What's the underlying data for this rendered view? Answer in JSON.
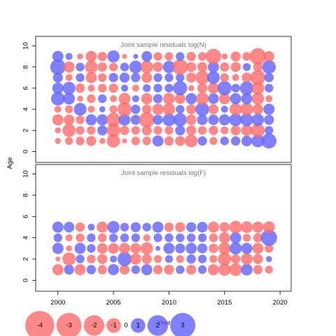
{
  "chart_data": {
    "type": "scatter",
    "subtype": "bubble",
    "xlabel": "Year",
    "ylabel": "Age",
    "x_ticks": [
      2000,
      2005,
      2010,
      2015,
      2020
    ],
    "xlim": [
      1998,
      2021
    ],
    "colors": {
      "positive": "#6262ff",
      "negative": "#ff6c6c",
      "alpha": 0.8
    },
    "legend": {
      "position": "bottom-left",
      "values": [
        -4,
        -3,
        -2,
        -1,
        0,
        1,
        2,
        3
      ],
      "labels": [
        "-4",
        "-3",
        "-2",
        "-1",
        "0",
        "1",
        "2",
        "3"
      ]
    },
    "panels": [
      {
        "title": "Joint sample residuals log(N)",
        "ylim": [
          -0.5,
          10.5
        ],
        "y_ticks": [
          0,
          2,
          4,
          6,
          8,
          10
        ],
        "years": [
          2000,
          2001,
          2002,
          2003,
          2004,
          2005,
          2006,
          2007,
          2008,
          2009,
          2010,
          2011,
          2012,
          2013,
          2014,
          2015,
          2016,
          2017,
          2018,
          2019
        ],
        "ages": [
          1,
          2,
          3,
          4,
          5,
          6,
          7,
          8,
          9
        ],
        "residuals": [
          [
            -0.3,
            -0.5,
            -0.6,
            -0.8,
            -0.3,
            -1.4,
            -0.2,
            -0.6,
            -0.6,
            1.0,
            -0.7,
            -0.8,
            -1.3,
            0.7,
            -0.5,
            0.6,
            0.7,
            0.9,
            1.3,
            1.8
          ],
          [
            -0.3,
            -1.4,
            -0.6,
            -0.6,
            0.8,
            -1.5,
            -0.7,
            -0.6,
            -0.8,
            -0.6,
            -0.6,
            0.8,
            -0.8,
            -0.6,
            -0.7,
            -0.5,
            -0.8,
            -1.0,
            -1.5,
            0.6
          ],
          [
            -1.0,
            -0.9,
            -0.6,
            1.0,
            1.0,
            -1.6,
            1.1,
            0.8,
            -1.9,
            0.8,
            1.3,
            1.4,
            -0.9,
            0.9,
            0.9,
            1.0,
            1.3,
            1.3,
            1.2,
            0.8
          ],
          [
            -0.4,
            -0.5,
            1.3,
            -0.4,
            0.3,
            -0.5,
            -1.6,
            0.7,
            -0.7,
            -1.0,
            -1.2,
            0.6,
            -0.8,
            1.5,
            -0.8,
            0.4,
            -1.2,
            -1.3,
            -0.9,
            1.0
          ],
          [
            1.5,
            1.1,
            -0.3,
            -0.6,
            0.6,
            -0.4,
            -1.1,
            0.4,
            -1.0,
            0.7,
            -1.1,
            -0.9,
            1.0,
            -1.3,
            0.9,
            -1.0,
            1.0,
            1.0,
            -1.2,
            -0.4
          ],
          [
            1.0,
            1.3,
            -0.7,
            -0.4,
            -0.6,
            -0.7,
            0.4,
            -0.4,
            0.5,
            0.6,
            0.6,
            1.6,
            -0.3,
            -0.8,
            -1.0,
            1.6,
            0.6,
            1.5,
            -1.3,
            0.6
          ],
          [
            0.8,
            -0.4,
            0.6,
            -1.0,
            -0.6,
            0.7,
            0.8,
            0.7,
            -0.9,
            0.6,
            0.6,
            0.6,
            -0.8,
            -1.5,
            1.3,
            -0.6,
            -0.4,
            -0.8,
            -1.8,
            0.7
          ],
          [
            1.9,
            -1.0,
            0.6,
            -1.3,
            -0.7,
            -0.6,
            0.6,
            1.3,
            -1.3,
            -0.8,
            1.2,
            -1.9,
            -0.8,
            -0.8,
            1.0,
            -0.7,
            -0.8,
            0.5,
            -0.7,
            1.5
          ],
          [
            1.0,
            0.4,
            -0.3,
            -1.0,
            -0.7,
            1.2,
            -0.2,
            0.2,
            0.9,
            -0.6,
            -0.6,
            0.6,
            -0.7,
            -0.6,
            -1.9,
            -0.3,
            -0.8,
            -0.6,
            -2.2,
            -0.9
          ]
        ]
      },
      {
        "title": "Joint sample residuals log(F)",
        "ylim": [
          -0.5,
          10.5
        ],
        "y_ticks": [
          0,
          2,
          4,
          6,
          8,
          10
        ],
        "years": [
          2000,
          2001,
          2002,
          2003,
          2004,
          2005,
          2006,
          2007,
          2008,
          2009,
          2010,
          2011,
          2012,
          2013,
          2014,
          2015,
          2016,
          2017,
          2018,
          2019
        ],
        "ages": [
          1,
          2,
          3,
          4,
          5
        ],
        "residuals": [
          [
            -1.0,
            0.8,
            -1.0,
            0.7,
            -0.7,
            1.0,
            -0.8,
            0.6,
            1.0,
            -0.7,
            -0.8,
            0.6,
            -0.8,
            0.6,
            -1.0,
            -1.2,
            -1.3,
            1.1,
            -0.7,
            -0.5
          ],
          [
            -0.2,
            -1.4,
            0.6,
            -0.6,
            -0.8,
            0.4,
            1.6,
            -1.0,
            -0.8,
            -0.5,
            0.5,
            -0.5,
            0.7,
            0.6,
            -0.5,
            -1.4,
            -0.7,
            -1.1,
            -0.8,
            0.3
          ],
          [
            1.0,
            -0.3,
            1.0,
            0.6,
            -0.9,
            -0.9,
            -1.0,
            -0.9,
            -1.2,
            0.2,
            1.0,
            0.8,
            1.0,
            0.8,
            -0.7,
            -1.2,
            1.2,
            1.0,
            -1.0,
            -0.6
          ],
          [
            0.6,
            -0.4,
            -0.6,
            0.6,
            -0.6,
            0.6,
            0.6,
            0.6,
            -0.4,
            0.6,
            0.6,
            0.6,
            0.6,
            0.6,
            -0.6,
            -1.0,
            1.0,
            -0.5,
            -0.7,
            2.1
          ],
          [
            1.0,
            0.9,
            -0.7,
            0.4,
            -1.0,
            1.2,
            0.6,
            0.8,
            0.6,
            1.0,
            -0.7,
            -0.8,
            0.8,
            0.9,
            -1.0,
            -0.8,
            -1.3,
            -1.1,
            -1.0,
            -1.1
          ]
        ]
      }
    ]
  }
}
